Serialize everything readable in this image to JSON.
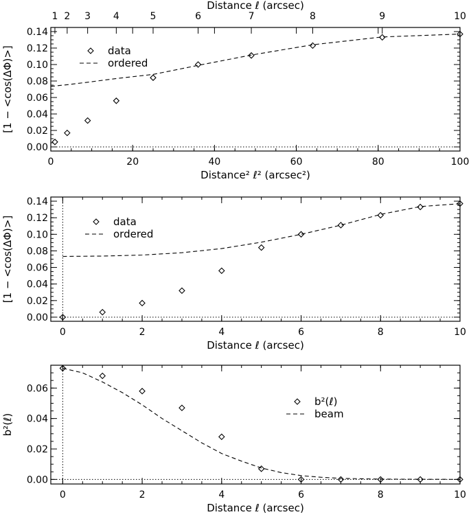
{
  "chart_data": [
    {
      "type": "scatter",
      "title": "",
      "xlabel": "Distance² ℓ² (arcsec²)",
      "ylabel": "[1 − <cos(ΔΦ)>]",
      "top_xlabel": "Distance ℓ (arcsec)",
      "xlim": [
        0,
        100
      ],
      "ylim": [
        -0.005,
        0.145
      ],
      "xticks": [
        "0",
        "20",
        "40",
        "60",
        "80",
        "100"
      ],
      "yticks": [
        "0.00",
        "0.02",
        "0.04",
        "0.06",
        "0.08",
        "0.10",
        "0.12",
        "0.14"
      ],
      "top_ticks": [
        "1",
        "2",
        "3",
        "4",
        "5",
        "6",
        "7",
        "8",
        "9",
        "10"
      ],
      "legend_position": "upper-left",
      "series": [
        {
          "name": "data",
          "style": "diamond",
          "x": [
            1,
            4,
            9,
            16,
            25,
            36,
            49,
            64,
            81,
            100
          ],
          "y": [
            0.006,
            0.017,
            0.032,
            0.056,
            0.084,
            0.1,
            0.111,
            0.123,
            0.133,
            0.137
          ]
        },
        {
          "name": "ordered",
          "style": "dashed",
          "x": [
            0,
            4,
            9,
            16,
            25,
            36,
            49,
            64,
            81,
            100
          ],
          "y": [
            0.0735,
            0.0755,
            0.0785,
            0.083,
            0.088,
            0.099,
            0.1115,
            0.124,
            0.1335,
            0.137
          ]
        }
      ],
      "reference_line_y": 0.0
    },
    {
      "type": "scatter",
      "title": "",
      "xlabel": "Distance ℓ (arcsec)",
      "ylabel": "[1 − <cos(ΔΦ)>]",
      "xlim": [
        -0.3,
        10
      ],
      "ylim": [
        -0.005,
        0.145
      ],
      "xticks": [
        "0",
        "2",
        "4",
        "6",
        "8",
        "10"
      ],
      "yticks": [
        "0.00",
        "0.02",
        "0.04",
        "0.06",
        "0.08",
        "0.10",
        "0.12",
        "0.14"
      ],
      "legend_position": "upper-left",
      "series": [
        {
          "name": "data",
          "style": "diamond",
          "x": [
            0,
            1,
            2,
            3,
            4,
            5,
            6,
            7,
            8,
            9,
            10
          ],
          "y": [
            0.0,
            0.006,
            0.017,
            0.032,
            0.056,
            0.084,
            0.1,
            0.111,
            0.123,
            0.133,
            0.137
          ]
        },
        {
          "name": "ordered",
          "style": "dashed",
          "x": [
            0,
            1,
            2,
            3,
            4,
            5,
            6,
            7,
            8,
            9,
            10
          ],
          "y": [
            0.0733,
            0.0737,
            0.075,
            0.0778,
            0.0828,
            0.0905,
            0.1,
            0.111,
            0.124,
            0.1335,
            0.137
          ]
        }
      ],
      "reference_line_y": 0.0,
      "reference_line_x": 0.0
    },
    {
      "type": "scatter",
      "title": "",
      "xlabel": "Distance ℓ (arcsec)",
      "ylabel": "b²(ℓ)",
      "xlim": [
        -0.3,
        10
      ],
      "ylim": [
        -0.003,
        0.075
      ],
      "xticks": [
        "0",
        "2",
        "4",
        "6",
        "8",
        "10"
      ],
      "yticks": [
        "0.00",
        "0.02",
        "0.04",
        "0.06"
      ],
      "legend_position": "right",
      "series": [
        {
          "name": "b²(ℓ)",
          "style": "diamond",
          "x": [
            0,
            1,
            2,
            3,
            4,
            5,
            6,
            7,
            8,
            9,
            10
          ],
          "y": [
            0.073,
            0.068,
            0.058,
            0.047,
            0.028,
            0.007,
            0.0,
            0.0,
            0.0,
            0.0,
            0.0
          ]
        },
        {
          "name": "beam",
          "style": "dashed",
          "x": [
            0,
            0.5,
            1,
            1.5,
            2,
            2.5,
            3,
            3.5,
            4,
            4.5,
            5,
            5.5,
            6,
            6.5,
            7,
            8,
            9,
            10
          ],
          "y": [
            0.073,
            0.07,
            0.064,
            0.057,
            0.049,
            0.04,
            0.032,
            0.024,
            0.017,
            0.012,
            0.0075,
            0.0045,
            0.0025,
            0.0014,
            0.0007,
            0.0002,
            0.0001,
            0.0
          ]
        }
      ],
      "reference_line_y": 0.0,
      "reference_line_x": 0.0
    }
  ]
}
